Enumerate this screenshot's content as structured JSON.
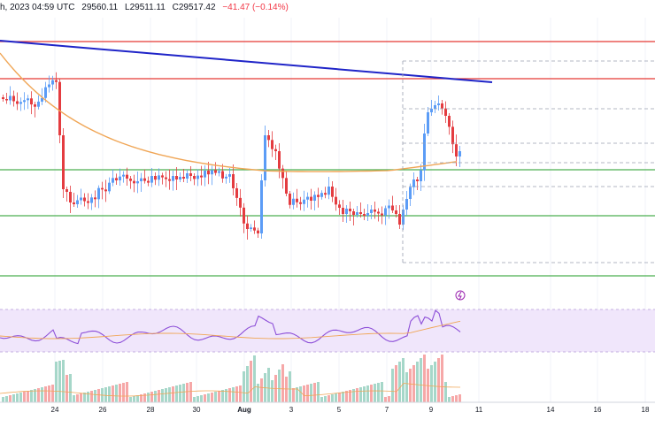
{
  "header": {
    "date_text": "h, 2023 04:59 UTC",
    "ohlc_open": "29560.11",
    "ohlc_low": "L29511.11",
    "ohlc_close": "C29517.42",
    "change": "−41.47 (−0.14%)"
  },
  "colors": {
    "up": "#5b9cf6",
    "down": "#e43c40",
    "trendline": "#1f24c8",
    "resistance": "#e53935",
    "support": "#4caf50",
    "ma": "#f0a656",
    "rsi_line": "#8d4fd8",
    "rsi_band": "#f0e6fb",
    "vol_up": "#a6d7c9",
    "vol_down": "#f6a8a8"
  },
  "x_axis": {
    "ticks": [
      {
        "label": "24",
        "bold": false
      },
      {
        "label": "26",
        "bold": false
      },
      {
        "label": "28",
        "bold": false
      },
      {
        "label": "30",
        "bold": false
      },
      {
        "label": "Aug",
        "bold": true
      },
      {
        "label": "3",
        "bold": false
      },
      {
        "label": "5",
        "bold": false
      },
      {
        "label": "7",
        "bold": false
      },
      {
        "label": "9",
        "bold": false
      },
      {
        "label": "11",
        "bold": false
      },
      {
        "label": "14",
        "bold": false
      },
      {
        "label": "16",
        "bold": false
      },
      {
        "label": "18",
        "bold": false
      }
    ]
  },
  "chart_data": {
    "type": "candlestick",
    "title": "",
    "candle_seed": [
      1,
      1,
      -1,
      1,
      1,
      1,
      -1,
      -1,
      1,
      1,
      -1,
      1,
      -1,
      -1,
      -1,
      1,
      1,
      1,
      -1,
      1,
      1,
      -1,
      -1,
      1,
      1,
      -1,
      1,
      -1,
      1,
      1,
      1,
      -1,
      1,
      -1,
      -1,
      -1,
      1,
      1,
      1,
      -1,
      -1,
      1,
      -1,
      1,
      -1,
      1,
      1,
      1,
      -1,
      1,
      1,
      1,
      -1,
      -1,
      1,
      1,
      1,
      -1,
      1,
      -1,
      1,
      -1,
      1,
      1,
      -1,
      1,
      -1,
      -1,
      1,
      1,
      -1,
      1,
      1,
      -1,
      1,
      1,
      1,
      -1,
      1,
      -1,
      -1,
      1,
      -1,
      1,
      1,
      -1,
      -1,
      1,
      -1,
      1,
      1,
      1,
      -1,
      1,
      1,
      -1,
      1,
      -1,
      -1,
      1,
      -1,
      1,
      1,
      1,
      -1,
      1,
      1,
      1,
      -1,
      -1,
      1,
      -1,
      1,
      1,
      1,
      -1,
      -1,
      1,
      1,
      -1,
      -1,
      1,
      1,
      -1,
      -1,
      1,
      1,
      -1,
      -1,
      -1,
      1,
      1,
      -1
    ],
    "horizontal_levels": [
      {
        "kind": "resistance",
        "level": 1
      },
      {
        "kind": "resistance",
        "level": 2
      },
      {
        "kind": "support",
        "level": 3
      },
      {
        "kind": "support",
        "level": 4
      },
      {
        "kind": "support",
        "level": 5
      }
    ],
    "panels": [
      "price",
      "rsi",
      "volume"
    ]
  }
}
